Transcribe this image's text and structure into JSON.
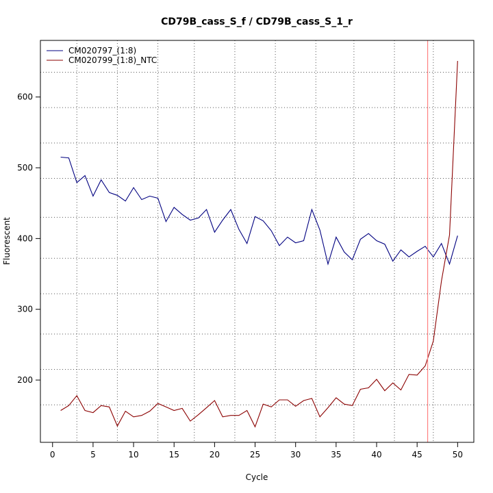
{
  "chart_data": {
    "type": "line",
    "title": "CD79B_cass_S_f / CD79B_cass_S_1_r",
    "xlabel": "Cycle",
    "ylabel": "Fluorescent",
    "xlim": [
      -1.5,
      52
    ],
    "ylim": [
      112,
      680
    ],
    "x_ticks": [
      0,
      5,
      10,
      15,
      20,
      25,
      30,
      35,
      40,
      45,
      50
    ],
    "y_ticks": [
      200,
      300,
      400,
      500,
      600
    ],
    "grid": true,
    "grid_x": [
      3,
      8,
      13,
      17.5,
      22.5,
      27.5,
      32.5,
      37.2,
      42.2,
      47
    ],
    "grid_y": [
      165,
      215,
      265,
      322,
      372,
      430,
      485,
      535,
      585,
      635
    ],
    "vline": {
      "x": 46.3,
      "color": "#ff8080"
    },
    "legend_position": "top-left",
    "series": [
      {
        "name": "CM020797_(1:8)",
        "color": "#000080",
        "x": [
          1,
          2,
          3,
          4,
          5,
          6,
          7,
          8,
          9,
          10,
          11,
          12,
          13,
          14,
          15,
          16,
          17,
          18,
          19,
          20,
          21,
          22,
          23,
          24,
          25,
          26,
          27,
          28,
          29,
          30,
          31,
          32,
          33,
          34,
          35,
          36,
          37,
          38,
          39,
          40,
          41,
          42,
          43,
          44,
          45,
          46,
          47,
          48,
          49,
          50
        ],
        "y": [
          515,
          514,
          479,
          489,
          460,
          483,
          465,
          461,
          453,
          472,
          455,
          460,
          457,
          424,
          444,
          434,
          426,
          429,
          441,
          409,
          426,
          441,
          413,
          393,
          431,
          425,
          411,
          390,
          402,
          394,
          397,
          441,
          412,
          364,
          402,
          381,
          370,
          399,
          407,
          397,
          392,
          368,
          384,
          374,
          382,
          389,
          374,
          393,
          364,
          404
        ]
      },
      {
        "name": "CM020799_(1:8)_NTC",
        "color": "#8b0000",
        "x": [
          1,
          2,
          3,
          4,
          5,
          6,
          7,
          8,
          9,
          10,
          11,
          12,
          13,
          14,
          15,
          16,
          17,
          18,
          19,
          20,
          21,
          22,
          23,
          24,
          25,
          26,
          27,
          28,
          29,
          30,
          31,
          32,
          33,
          34,
          35,
          36,
          37,
          38,
          39,
          40,
          41,
          42,
          43,
          44,
          45,
          46,
          47,
          48,
          49,
          50
        ],
        "y": [
          157,
          164,
          178,
          157,
          154,
          164,
          162,
          135,
          156,
          148,
          150,
          156,
          167,
          162,
          157,
          160,
          142,
          151,
          161,
          171,
          148,
          150,
          150,
          157,
          134,
          166,
          162,
          172,
          172,
          163,
          171,
          174,
          148,
          161,
          175,
          166,
          164,
          187,
          189,
          201,
          185,
          196,
          186,
          208,
          207,
          220,
          255,
          340,
          405,
          651
        ]
      }
    ]
  }
}
